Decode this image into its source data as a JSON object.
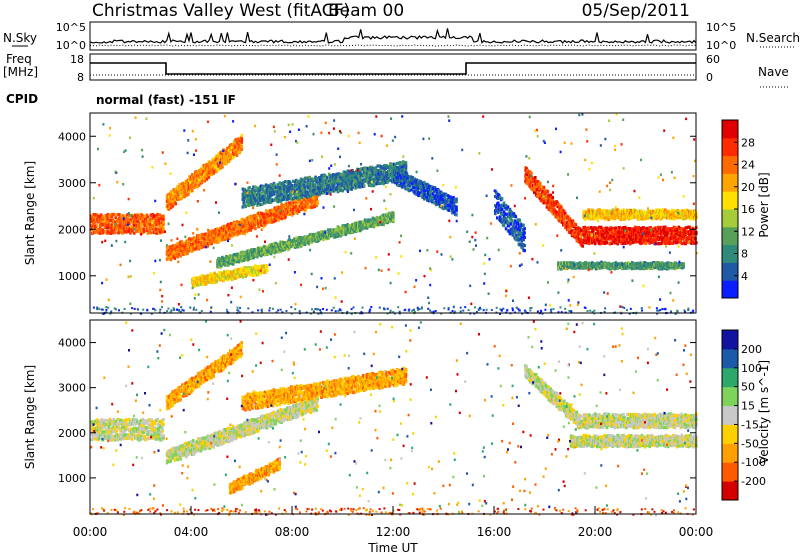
{
  "header": {
    "title": "Christmas Valley West (fitACF)",
    "beam": "Beam 00",
    "date": "05/Sep/2011"
  },
  "noise_panel": {
    "left_label": "N.Sky",
    "right_label": "N.Search",
    "left_ticks": [
      "10^5",
      "10^0"
    ],
    "right_ticks": [
      "10^5",
      "10^0"
    ]
  },
  "freq_panel": {
    "left_label_1": "Freq",
    "left_label_2": "[MHz]",
    "right_label": "Nave",
    "left_ticks": [
      "18",
      "8"
    ],
    "right_ticks": [
      "60",
      "0"
    ]
  },
  "cpid": {
    "label": "CPID",
    "value": "normal (fast) -151 IF"
  },
  "colors": {
    "power": [
      "#0a1eff",
      "#1f5aa6",
      "#2f8a7a",
      "#56a05a",
      "#a6cc3a",
      "#ffe000",
      "#ffa500",
      "#ff6a00",
      "#ff2a00",
      "#e00000"
    ],
    "velocity": [
      "#d40000",
      "#ff5a00",
      "#ff9f00",
      "#ffd000",
      "#c8c8c8",
      "#7ed35a",
      "#2ea86a",
      "#1a5aa8",
      "#1212a0"
    ],
    "ground_scatter": "#c8c8c8"
  },
  "chart_data": [
    {
      "type": "heatmap",
      "name": "power",
      "ylabel": "Slant Range [km]",
      "yticks": [
        "1000",
        "2000",
        "3000",
        "4000"
      ],
      "ylim": [
        200,
        4500
      ],
      "xlim": [
        0,
        24
      ],
      "colorbar": {
        "label": "Power [dB]",
        "ticks": [
          "4",
          "8",
          "12",
          "16",
          "20",
          "24",
          "28"
        ]
      },
      "series": [
        {
          "start_hr": 0.0,
          "end_hr": 2.9,
          "start_km": 2150,
          "end_km": 2150,
          "width_km": 350,
          "level": 0.78
        },
        {
          "start_hr": 3.0,
          "end_hr": 6.0,
          "start_km": 2600,
          "end_km": 3900,
          "width_km": 300,
          "level": 0.7
        },
        {
          "start_hr": 3.0,
          "end_hr": 9.0,
          "start_km": 1500,
          "end_km": 2700,
          "width_km": 250,
          "level": 0.75
        },
        {
          "start_hr": 5.0,
          "end_hr": 12.0,
          "start_km": 1300,
          "end_km": 2300,
          "width_km": 150,
          "level": 0.35
        },
        {
          "start_hr": 6.0,
          "end_hr": 12.5,
          "start_km": 2700,
          "end_km": 3300,
          "width_km": 350,
          "level": 0.22
        },
        {
          "start_hr": 12.0,
          "end_hr": 14.5,
          "start_km": 3200,
          "end_km": 2500,
          "width_km": 300,
          "level": 0.15
        },
        {
          "start_hr": 4.0,
          "end_hr": 7.0,
          "start_km": 900,
          "end_km": 1200,
          "width_km": 150,
          "level": 0.55
        },
        {
          "start_hr": 17.2,
          "end_hr": 19.5,
          "start_km": 3200,
          "end_km": 1800,
          "width_km": 300,
          "level": 0.82
        },
        {
          "start_hr": 19.5,
          "end_hr": 24.0,
          "start_km": 1900,
          "end_km": 1900,
          "width_km": 300,
          "level": 0.9
        },
        {
          "start_hr": 19.5,
          "end_hr": 24.0,
          "start_km": 2350,
          "end_km": 2350,
          "width_km": 150,
          "level": 0.6
        },
        {
          "start_hr": 16.0,
          "end_hr": 17.2,
          "start_km": 2600,
          "end_km": 1800,
          "width_km": 500,
          "level": 0.15
        },
        {
          "start_hr": 18.5,
          "end_hr": 23.5,
          "start_km": 1250,
          "end_km": 1250,
          "width_km": 80,
          "level": 0.3
        }
      ]
    },
    {
      "type": "heatmap",
      "name": "velocity",
      "ylabel": "Slant Range [km]",
      "yticks": [
        "1000",
        "2000",
        "3000",
        "4000"
      ],
      "ylim": [
        200,
        4500
      ],
      "xlim": [
        0,
        24
      ],
      "xticks": [
        "00:00",
        "04:00",
        "08:00",
        "12:00",
        "16:00",
        "20:00",
        "00:00"
      ],
      "xlabel": "Time UT",
      "colorbar": {
        "label": "Velocity [m s^-1]",
        "ticks": [
          "-200",
          "-100",
          "-50",
          "-15",
          "15",
          "50",
          "100",
          "200"
        ]
      },
      "series": [
        {
          "start_hr": 0.0,
          "end_hr": 2.9,
          "start_km": 2100,
          "end_km": 2100,
          "width_km": 400,
          "level": 0.5
        },
        {
          "start_hr": 3.0,
          "end_hr": 6.0,
          "start_km": 2700,
          "end_km": 3900,
          "width_km": 250,
          "level": 0.3
        },
        {
          "start_hr": 3.0,
          "end_hr": 9.0,
          "start_km": 1500,
          "end_km": 2700,
          "width_km": 250,
          "level": 0.5
        },
        {
          "start_hr": 6.0,
          "end_hr": 12.5,
          "start_km": 2700,
          "end_km": 3300,
          "width_km": 300,
          "level": 0.3
        },
        {
          "start_hr": 5.5,
          "end_hr": 7.5,
          "start_km": 800,
          "end_km": 1350,
          "width_km": 180,
          "level": 0.28
        },
        {
          "start_hr": 17.2,
          "end_hr": 19.5,
          "start_km": 3400,
          "end_km": 2200,
          "width_km": 250,
          "level": 0.5
        },
        {
          "start_hr": 19.5,
          "end_hr": 24.0,
          "start_km": 2300,
          "end_km": 2300,
          "width_km": 250,
          "level": 0.5
        },
        {
          "start_hr": 19.0,
          "end_hr": 24.0,
          "start_km": 1850,
          "end_km": 1850,
          "width_km": 200,
          "level": 0.5
        }
      ]
    }
  ]
}
